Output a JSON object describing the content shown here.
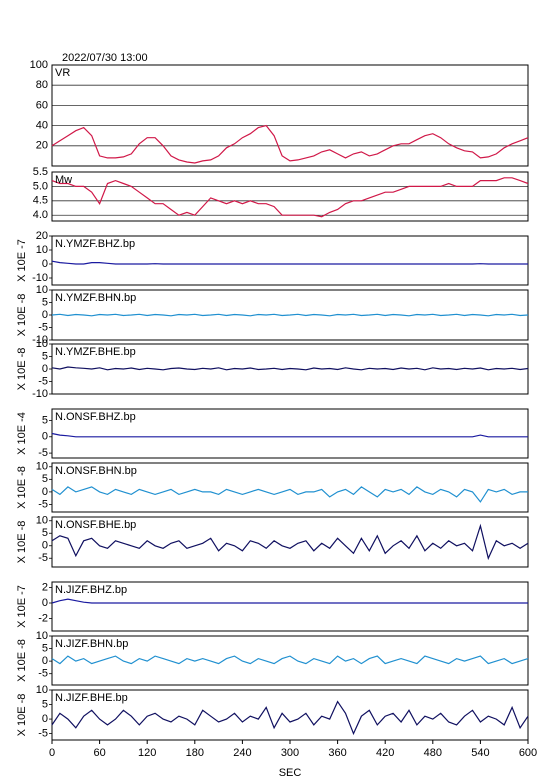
{
  "chart_data": {
    "type": "line",
    "title": "2022/07/30 13:00",
    "xlabel": "SEC",
    "xlim": [
      0,
      600
    ],
    "xticks": [
      0,
      60,
      120,
      180,
      240,
      300,
      360,
      420,
      480,
      540,
      600
    ],
    "x": [
      0,
      10,
      20,
      30,
      40,
      50,
      60,
      70,
      80,
      90,
      100,
      110,
      120,
      130,
      140,
      150,
      160,
      170,
      180,
      190,
      200,
      210,
      220,
      230,
      240,
      250,
      260,
      270,
      280,
      290,
      300,
      310,
      320,
      330,
      340,
      350,
      360,
      370,
      380,
      390,
      400,
      410,
      420,
      430,
      440,
      450,
      460,
      470,
      480,
      490,
      500,
      510,
      520,
      530,
      540,
      550,
      560,
      570,
      580,
      590,
      600
    ],
    "panels": [
      {
        "label": "VR",
        "ylim": [
          0,
          100
        ],
        "yticks": [
          20,
          40,
          60,
          80,
          100
        ],
        "grid": true,
        "color": "#d01848",
        "values": [
          20,
          25,
          30,
          35,
          38,
          30,
          10,
          8,
          8,
          9,
          12,
          22,
          28,
          28,
          20,
          10,
          6,
          4,
          3,
          5,
          6,
          10,
          18,
          22,
          28,
          32,
          38,
          40,
          30,
          10,
          5,
          6,
          8,
          10,
          14,
          16,
          12,
          8,
          12,
          14,
          10,
          12,
          16,
          20,
          22,
          22,
          26,
          30,
          32,
          28,
          22,
          18,
          15,
          14,
          8,
          9,
          12,
          18,
          22,
          25,
          28
        ]
      },
      {
        "label": "Mw",
        "ylim": [
          3.8,
          5.5
        ],
        "yticks": [
          {
            "value": 4,
            "label": "4.0"
          },
          4.5,
          {
            "value": 5,
            "label": "5.0"
          },
          5.5
        ],
        "grid": true,
        "color": "#d01848",
        "values": [
          5.2,
          5.1,
          5.1,
          5.0,
          5.0,
          4.8,
          4.4,
          5.1,
          5.2,
          5.1,
          5.0,
          4.8,
          4.6,
          4.4,
          4.4,
          4.2,
          4.0,
          4.1,
          4.0,
          4.3,
          4.6,
          4.5,
          4.4,
          4.5,
          4.4,
          4.5,
          4.4,
          4.4,
          4.3,
          4.0,
          4.0,
          4.0,
          4.0,
          4.0,
          3.95,
          4.1,
          4.2,
          4.4,
          4.5,
          4.5,
          4.6,
          4.7,
          4.8,
          4.8,
          4.9,
          5.0,
          5.0,
          5.0,
          5.0,
          5.0,
          5.1,
          5.0,
          5.0,
          5.0,
          5.2,
          5.2,
          5.2,
          5.3,
          5.3,
          5.2,
          5.1
        ]
      },
      {
        "label": "N.YMZF.BHZ.bp",
        "ylabel": "X 10E -7",
        "ylim": [
          -15,
          20
        ],
        "yticks": [
          -10,
          0,
          10,
          20
        ],
        "grid": false,
        "color": "#1a1aa0",
        "values": [
          2,
          1,
          0.5,
          0,
          0,
          1,
          1,
          0.5,
          0,
          0,
          0,
          0,
          0,
          0.2,
          0,
          0,
          0,
          0,
          0,
          0,
          0,
          0,
          0,
          0,
          0,
          0,
          0,
          0,
          0,
          0,
          0,
          0,
          0,
          0,
          0,
          0,
          0,
          0,
          0,
          0,
          0,
          0,
          0,
          0,
          0,
          0,
          0,
          0,
          0,
          0,
          0,
          0,
          0,
          0,
          0.2,
          0,
          0,
          0,
          0,
          0,
          0
        ]
      },
      {
        "label": "N.YMZF.BHN.bp",
        "ylabel": "X 10E -8",
        "ylim": [
          -10,
          10
        ],
        "yticks": [
          -10,
          -5,
          0,
          5,
          10
        ],
        "grid": false,
        "color": "#2090d0",
        "values": [
          0,
          0.3,
          -0.2,
          0.2,
          0,
          -0.3,
          0.2,
          0,
          0.3,
          -0.2,
          0,
          0.3,
          -0.2,
          0.2,
          0,
          -0.3,
          0.2,
          0,
          0.3,
          -0.2,
          0,
          0.3,
          -0.2,
          0.2,
          0,
          -0.3,
          0.2,
          0,
          0.3,
          -0.2,
          0,
          0.3,
          -0.2,
          0.2,
          0,
          -0.3,
          0.2,
          0,
          0.3,
          -0.2,
          0,
          0.3,
          -0.2,
          0.2,
          0,
          -0.3,
          0.2,
          0,
          0.3,
          -0.2,
          0,
          0.3,
          -0.2,
          0.2,
          0,
          -0.3,
          0.2,
          0,
          0.3,
          -0.2,
          0
        ]
      },
      {
        "label": "N.YMZF.BHE.bp",
        "ylabel": "X 10E -8",
        "ylim": [
          -10,
          10
        ],
        "yticks": [
          -10,
          -5,
          0,
          5,
          10
        ],
        "grid": false,
        "color": "#101060",
        "values": [
          0.5,
          0,
          0.8,
          0.5,
          0.3,
          0,
          0.5,
          -0.3,
          0.2,
          0,
          0.4,
          -0.2,
          0.3,
          0,
          -0.3,
          0.2,
          0.4,
          0,
          -0.2,
          0.3,
          0,
          0.5,
          -0.3,
          0.2,
          0,
          0.4,
          -0.2,
          0,
          0.3,
          -0.2,
          0.2,
          0,
          -0.3,
          0.4,
          0,
          0.2,
          -0.2,
          0.5,
          0,
          -0.3,
          0.3,
          0,
          0.2,
          -0.2,
          0.4,
          0,
          0.3,
          -0.3,
          0.5,
          0,
          0.2,
          -0.2,
          0.3,
          0,
          0.4,
          -0.3,
          0.2,
          0,
          0.3,
          -0.2,
          0.2
        ]
      },
      {
        "label": "N.ONSF.BHZ.bp",
        "ylabel": "X 10E -4",
        "ylim": [
          -6.5,
          8.5
        ],
        "yticks": [
          -5,
          0,
          5
        ],
        "grid": false,
        "color": "#1a1aa0",
        "values": [
          1,
          0.5,
          0.3,
          0,
          0,
          0,
          0,
          0,
          0,
          0,
          0,
          0,
          0,
          0,
          0,
          0,
          0,
          0,
          0,
          0,
          0,
          0,
          0,
          0,
          0,
          0,
          0,
          0,
          0,
          0,
          0,
          0,
          0,
          0,
          0,
          0,
          0,
          0,
          0,
          0,
          0,
          0,
          0,
          0,
          0,
          0,
          0,
          0,
          0,
          0,
          0,
          0,
          0,
          0,
          0.5,
          0,
          0,
          0,
          0,
          0,
          0
        ]
      },
      {
        "label": "N.ONSF.BHN.bp",
        "ylabel": "X 10E -8",
        "ylim": [
          -8,
          11.5
        ],
        "yticks": [
          -5,
          0,
          5,
          10
        ],
        "grid": false,
        "color": "#2090d0",
        "values": [
          1,
          -1,
          2,
          0,
          1,
          2,
          0,
          -1,
          1,
          0,
          -1,
          1,
          0,
          -1,
          0,
          1,
          -1,
          0,
          1,
          0,
          0,
          -1,
          1,
          0,
          -1,
          0,
          1,
          0,
          -1,
          0,
          1,
          -1,
          0,
          0,
          1,
          -2,
          0,
          1,
          -1,
          2,
          0,
          -2,
          1,
          0,
          1,
          -1,
          2,
          0,
          -1,
          1,
          0,
          -2,
          1,
          0,
          -4,
          1,
          0,
          1,
          -1,
          0,
          0
        ]
      },
      {
        "label": "N.ONSF.BHE.bp",
        "ylabel": "X 10E -8",
        "ylim": [
          -8.5,
          11.5
        ],
        "yticks": [
          -5,
          0,
          5,
          10
        ],
        "grid": false,
        "color": "#101060",
        "values": [
          2,
          4,
          3,
          -4,
          2,
          3,
          0,
          -1,
          2,
          1,
          0,
          -1,
          2,
          0,
          -1,
          1,
          2,
          -1,
          0,
          1,
          3,
          -2,
          1,
          0,
          -2,
          2,
          1,
          -1,
          2,
          0,
          -1,
          1,
          2,
          -2,
          1,
          -1,
          3,
          0,
          -3,
          3,
          -2,
          4,
          -3,
          0,
          2,
          -1,
          4,
          -2,
          1,
          -1,
          2,
          0,
          1,
          -2,
          8,
          -5,
          2,
          0,
          1,
          -1,
          1
        ]
      },
      {
        "label": "N.JIZF.BHZ.bp",
        "ylabel": "X 10E -7",
        "ylim": [
          -3.6,
          2.7
        ],
        "yticks": [
          -2,
          0,
          2
        ],
        "grid": false,
        "color": "#1a1aa0",
        "values": [
          0,
          0.3,
          0.5,
          0.3,
          0.1,
          0,
          0,
          0,
          0,
          0,
          0,
          0,
          0,
          0,
          0,
          0,
          0,
          0,
          0,
          0,
          0,
          0,
          0,
          0,
          0,
          0,
          0,
          0,
          0,
          0,
          0,
          0,
          0,
          0,
          0,
          0,
          0,
          0,
          0,
          0,
          0,
          0,
          0,
          0,
          0,
          0,
          0,
          0,
          0,
          0,
          0,
          0,
          0,
          0,
          0,
          0,
          0,
          0,
          0,
          0,
          0
        ]
      },
      {
        "label": "N.JIZF.BHN.bp",
        "ylabel": "X 10E -8",
        "ylim": [
          -9.5,
          10
        ],
        "yticks": [
          -5,
          0,
          5,
          10
        ],
        "grid": false,
        "color": "#2090d0",
        "values": [
          1,
          -1,
          2,
          0,
          1,
          -1,
          0,
          1,
          2,
          0,
          -1,
          1,
          0,
          2,
          1,
          0,
          -1,
          1,
          0,
          1,
          0,
          -1,
          1,
          2,
          0,
          -1,
          1,
          0,
          -1,
          1,
          2,
          0,
          -1,
          1,
          0,
          -1,
          2,
          0,
          1,
          -1,
          1,
          2,
          -1,
          0,
          1,
          0,
          -1,
          2,
          1,
          0,
          -1,
          1,
          0,
          1,
          2,
          -1,
          0,
          1,
          -1,
          0,
          1
        ]
      },
      {
        "label": "N.JIZF.BHE.bp",
        "ylabel": "X 10E -8",
        "ylim": [
          -7.2,
          10
        ],
        "yticks": [
          -5,
          0,
          5,
          10
        ],
        "grid": false,
        "color": "#101060",
        "values": [
          -2,
          2,
          0,
          -3,
          1,
          3,
          0,
          -2,
          0,
          3,
          1,
          -2,
          1,
          2,
          0,
          -1,
          1,
          0,
          -2,
          3,
          1,
          -1,
          0,
          2,
          -1,
          1,
          0,
          4,
          -3,
          2,
          -1,
          0,
          2,
          -2,
          1,
          0,
          6,
          2,
          -5,
          1,
          3,
          -2,
          1,
          2,
          -1,
          3,
          -2,
          1,
          0,
          2,
          -1,
          -2,
          1,
          3,
          -1,
          1,
          0,
          -2,
          4,
          -3,
          1
        ]
      }
    ]
  }
}
